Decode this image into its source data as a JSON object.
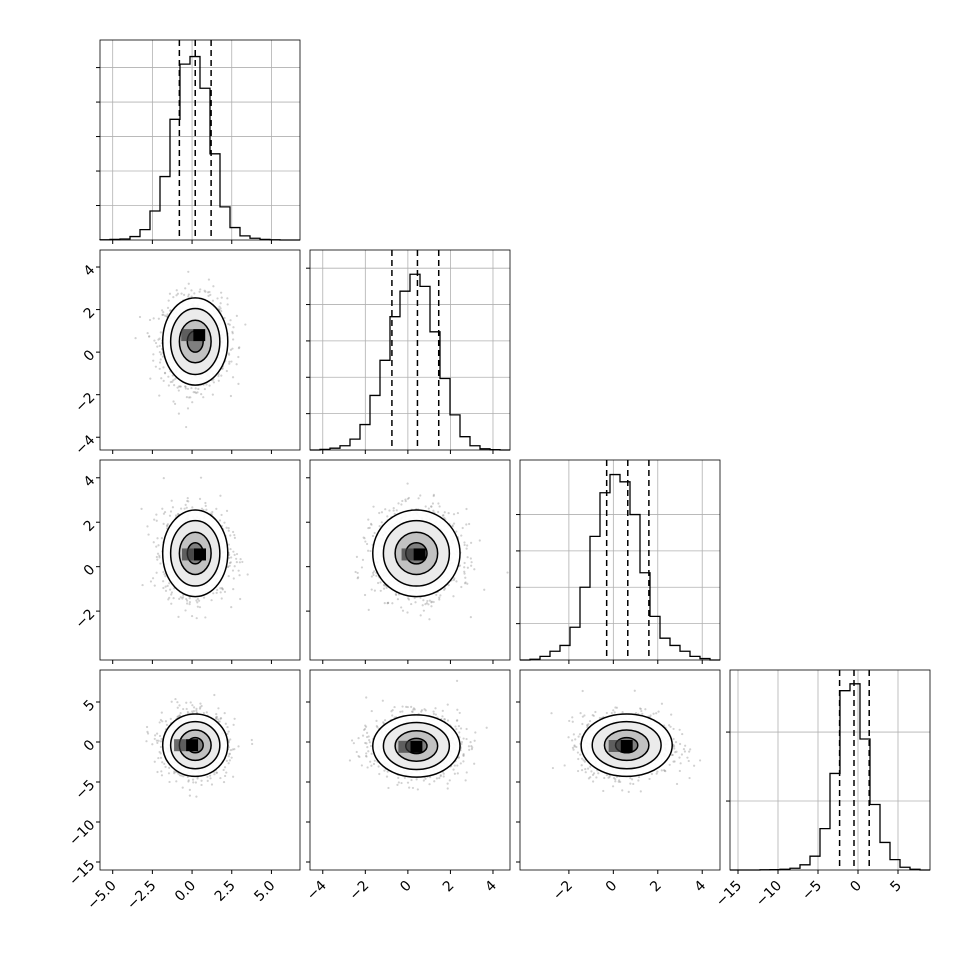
{
  "colors": {
    "hist_line": "#000000",
    "grid": "#b0b0b0",
    "scatter": "#9a9a9a",
    "contour": "#000000",
    "quantile": "#000000"
  },
  "chart_data": {
    "type": "corner",
    "variables": 4,
    "grid": true,
    "quantiles": [
      0.16,
      0.5,
      0.84
    ],
    "parameters": [
      {
        "range": [
          -5.8,
          6.8
        ],
        "ticks": [
          -5.0,
          -2.5,
          0.0,
          2.5,
          5.0
        ],
        "tick_labels": [
          "−5.0",
          "−2.5",
          "0.0",
          "2.5",
          "5.0"
        ],
        "quantile_values": [
          -0.8,
          0.2,
          1.2
        ],
        "hist": {
          "edges": [
            -5.8,
            -5.17,
            -4.54,
            -3.91,
            -3.28,
            -2.65,
            -2.02,
            -1.39,
            -0.76,
            -0.13,
            0.5,
            1.13,
            1.76,
            2.39,
            3.02,
            3.65,
            4.28,
            4.91,
            5.54,
            6.17,
            6.8
          ],
          "counts": [
            0.4,
            0.8,
            1.5,
            5,
            15,
            42,
            92,
            175,
            255,
            266,
            220,
            125,
            48,
            18,
            6,
            2.5,
            0.8,
            0.3,
            0,
            0
          ],
          "ymax": 290,
          "grid_y": [
            50,
            100,
            150,
            200,
            250
          ]
        }
      },
      {
        "range": [
          -4.6,
          4.8
        ],
        "ticks": [
          -4,
          -2,
          0,
          2,
          4
        ],
        "tick_labels": [
          "−4",
          "−2",
          "0",
          "2",
          "4"
        ],
        "quantile_values": [
          -0.75,
          0.45,
          1.45
        ],
        "hist": {
          "edges": [
            -4.6,
            -4.13,
            -3.66,
            -3.19,
            -2.72,
            -2.25,
            -1.78,
            -1.31,
            -0.84,
            -0.37,
            0.1,
            0.57,
            1.04,
            1.51,
            1.98,
            2.45,
            2.92,
            3.39,
            3.86,
            4.33,
            4.8
          ],
          "counts": [
            0,
            1,
            3,
            7,
            18,
            42,
            90,
            148,
            220,
            262,
            290,
            270,
            195,
            118,
            58,
            22,
            7,
            2,
            0.5,
            0
          ],
          "ymax": 330,
          "grid_y": [
            60,
            120,
            180,
            240,
            300
          ]
        }
      },
      {
        "range": [
          -4.2,
          4.8
        ],
        "ticks": [
          -2,
          0,
          2,
          4
        ],
        "tick_labels": [
          "−2",
          "0",
          "2",
          "4"
        ],
        "quantile_values": [
          -0.3,
          0.65,
          1.6
        ],
        "hist": {
          "edges": [
            -4.2,
            -3.75,
            -3.3,
            -2.85,
            -2.4,
            -1.95,
            -1.5,
            -1.05,
            -0.6,
            -0.15,
            0.3,
            0.75,
            1.2,
            1.65,
            2.1,
            2.55,
            3.0,
            3.45,
            3.9,
            4.35,
            4.8
          ],
          "counts": [
            0,
            1,
            5,
            12,
            20,
            45,
            100,
            170,
            230,
            255,
            245,
            200,
            120,
            60,
            30,
            20,
            12,
            5,
            2,
            0
          ],
          "ymax": 275,
          "grid_y": [
            50,
            100,
            150,
            200
          ]
        }
      },
      {
        "range": [
          -16,
          9
        ],
        "ticks": [
          -15,
          -10,
          -5,
          0,
          5
        ],
        "tick_labels": [
          "−15",
          "−10",
          "−5",
          "0",
          "5"
        ],
        "quantile_values": [
          -2.3,
          -0.5,
          1.4
        ],
        "hist": {
          "edges": [
            -16,
            -14.75,
            -13.5,
            -12.25,
            -11,
            -9.75,
            -8.5,
            -7.25,
            -6,
            -4.75,
            -3.5,
            -2.25,
            -1,
            0.25,
            1.5,
            2.75,
            4,
            5.25,
            6.5,
            7.75,
            9
          ],
          "counts": [
            0,
            0,
            0,
            0.5,
            1,
            2,
            5,
            15,
            40,
            120,
            280,
            520,
            540,
            380,
            190,
            80,
            30,
            8,
            2,
            0
          ],
          "ymax": 580,
          "grid_y": [
            200,
            400
          ]
        }
      }
    ],
    "pairs": [
      {
        "row": 1,
        "col": 0,
        "center": [
          0.2,
          0.5
        ],
        "sigma": [
          1.0,
          1.0
        ],
        "core": [
          0.45,
          0.8
        ]
      },
      {
        "row": 2,
        "col": 0,
        "center": [
          0.2,
          0.6
        ],
        "sigma": [
          1.0,
          0.95
        ],
        "core": [
          0.5,
          0.55
        ]
      },
      {
        "row": 2,
        "col": 1,
        "center": [
          0.4,
          0.6
        ],
        "sigma": [
          1.0,
          0.95
        ],
        "core": [
          0.55,
          0.55
        ]
      },
      {
        "row": 3,
        "col": 0,
        "center": [
          0.2,
          -0.4
        ],
        "sigma": [
          1.0,
          1.9
        ],
        "core": [
          0.0,
          -0.4
        ]
      },
      {
        "row": 3,
        "col": 1,
        "center": [
          0.4,
          -0.5
        ],
        "sigma": [
          1.0,
          1.9
        ],
        "core": [
          0.4,
          -0.6
        ]
      },
      {
        "row": 3,
        "col": 2,
        "center": [
          0.6,
          -0.4
        ],
        "sigma": [
          1.0,
          1.9
        ],
        "core": [
          0.6,
          -0.5
        ]
      }
    ]
  }
}
